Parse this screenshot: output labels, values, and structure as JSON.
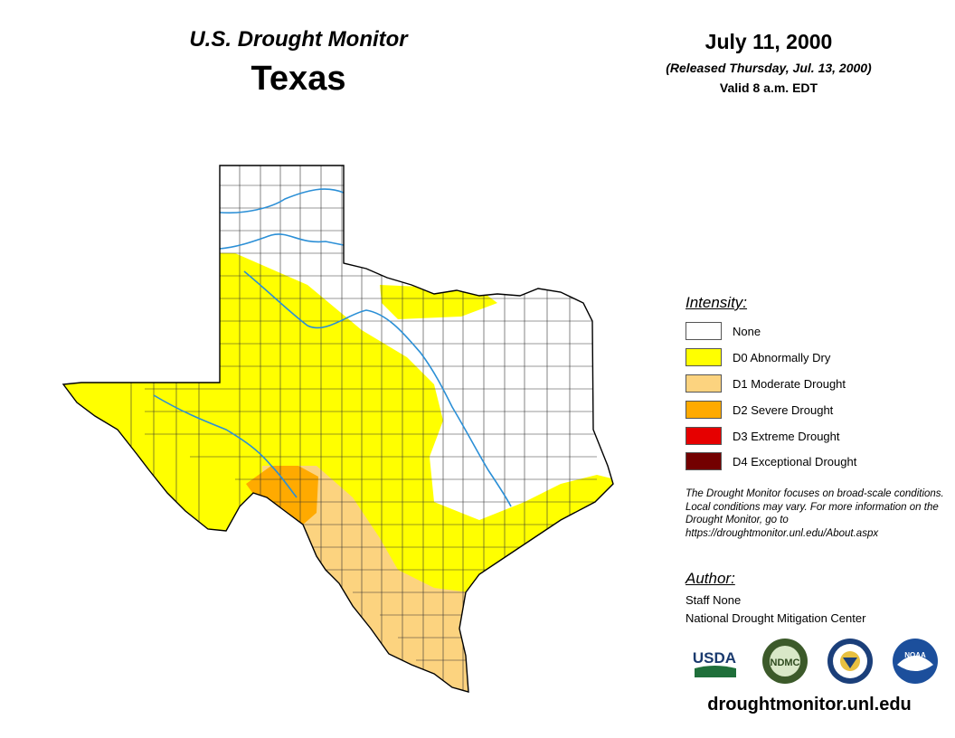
{
  "header": {
    "title": "U.S. Drought Monitor",
    "state": "Texas",
    "date": "July 11, 2000",
    "released": "(Released Thursday, Jul. 13, 2000)",
    "valid": "Valid 8 a.m. EDT"
  },
  "legend": {
    "title": "Intensity:",
    "items": [
      {
        "label": "None",
        "color": "#ffffff"
      },
      {
        "label": "D0 Abnormally Dry",
        "color": "#ffff00"
      },
      {
        "label": "D1 Moderate Drought",
        "color": "#fcd37f"
      },
      {
        "label": "D2 Severe Drought",
        "color": "#ffaa00"
      },
      {
        "label": "D3 Extreme Drought",
        "color": "#e60000"
      },
      {
        "label": "D4 Exceptional Drought",
        "color": "#730000"
      }
    ]
  },
  "note": "The Drought Monitor focuses on broad-scale conditions. Local conditions may vary. For more information on the Drought Monitor, go to https://droughtmonitor.unl.edu/About.aspx",
  "author": {
    "title": "Author:",
    "name": "Staff None",
    "org": "National Drought Mitigation Center"
  },
  "logos": [
    {
      "name": "usda-logo",
      "text": "USDA"
    },
    {
      "name": "ndmc-logo",
      "text": "NDMC"
    },
    {
      "name": "commerce-logo",
      "text": ""
    },
    {
      "name": "noaa-logo",
      "text": "NOAA"
    }
  ],
  "website": "droughtmonitor.unl.edu",
  "colors": {
    "river": "#2b8fd6",
    "county_line": "#333333"
  }
}
